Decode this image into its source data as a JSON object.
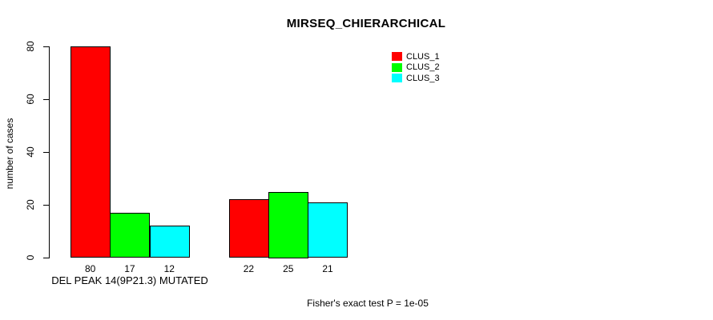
{
  "chart_data": {
    "type": "bar",
    "title": "MIRSEQ_CHIERARCHICAL",
    "ylabel": "number of cases",
    "ylim": [
      0,
      80
    ],
    "yticks": [
      0,
      20,
      40,
      60,
      80
    ],
    "grid": false,
    "legend_position": "top-right-inside",
    "categories": [
      "DEL PEAK 14(9P21.3) MUTATED",
      ""
    ],
    "series": [
      {
        "name": "CLUS_1",
        "color": "#FF0000",
        "values": [
          80,
          22
        ]
      },
      {
        "name": "CLUS_2",
        "color": "#00FF00",
        "values": [
          17,
          25
        ]
      },
      {
        "name": "CLUS_3",
        "color": "#00FFFF",
        "values": [
          12,
          21
        ]
      }
    ],
    "bar_value_labels": [
      [
        80,
        17,
        12
      ],
      [
        22,
        25,
        21
      ]
    ],
    "xlabel_groups": [
      "DEL PEAK 14(9P21.3) MUTATED",
      ""
    ],
    "annotation": "Fisher's exact test P = 1e-05"
  }
}
